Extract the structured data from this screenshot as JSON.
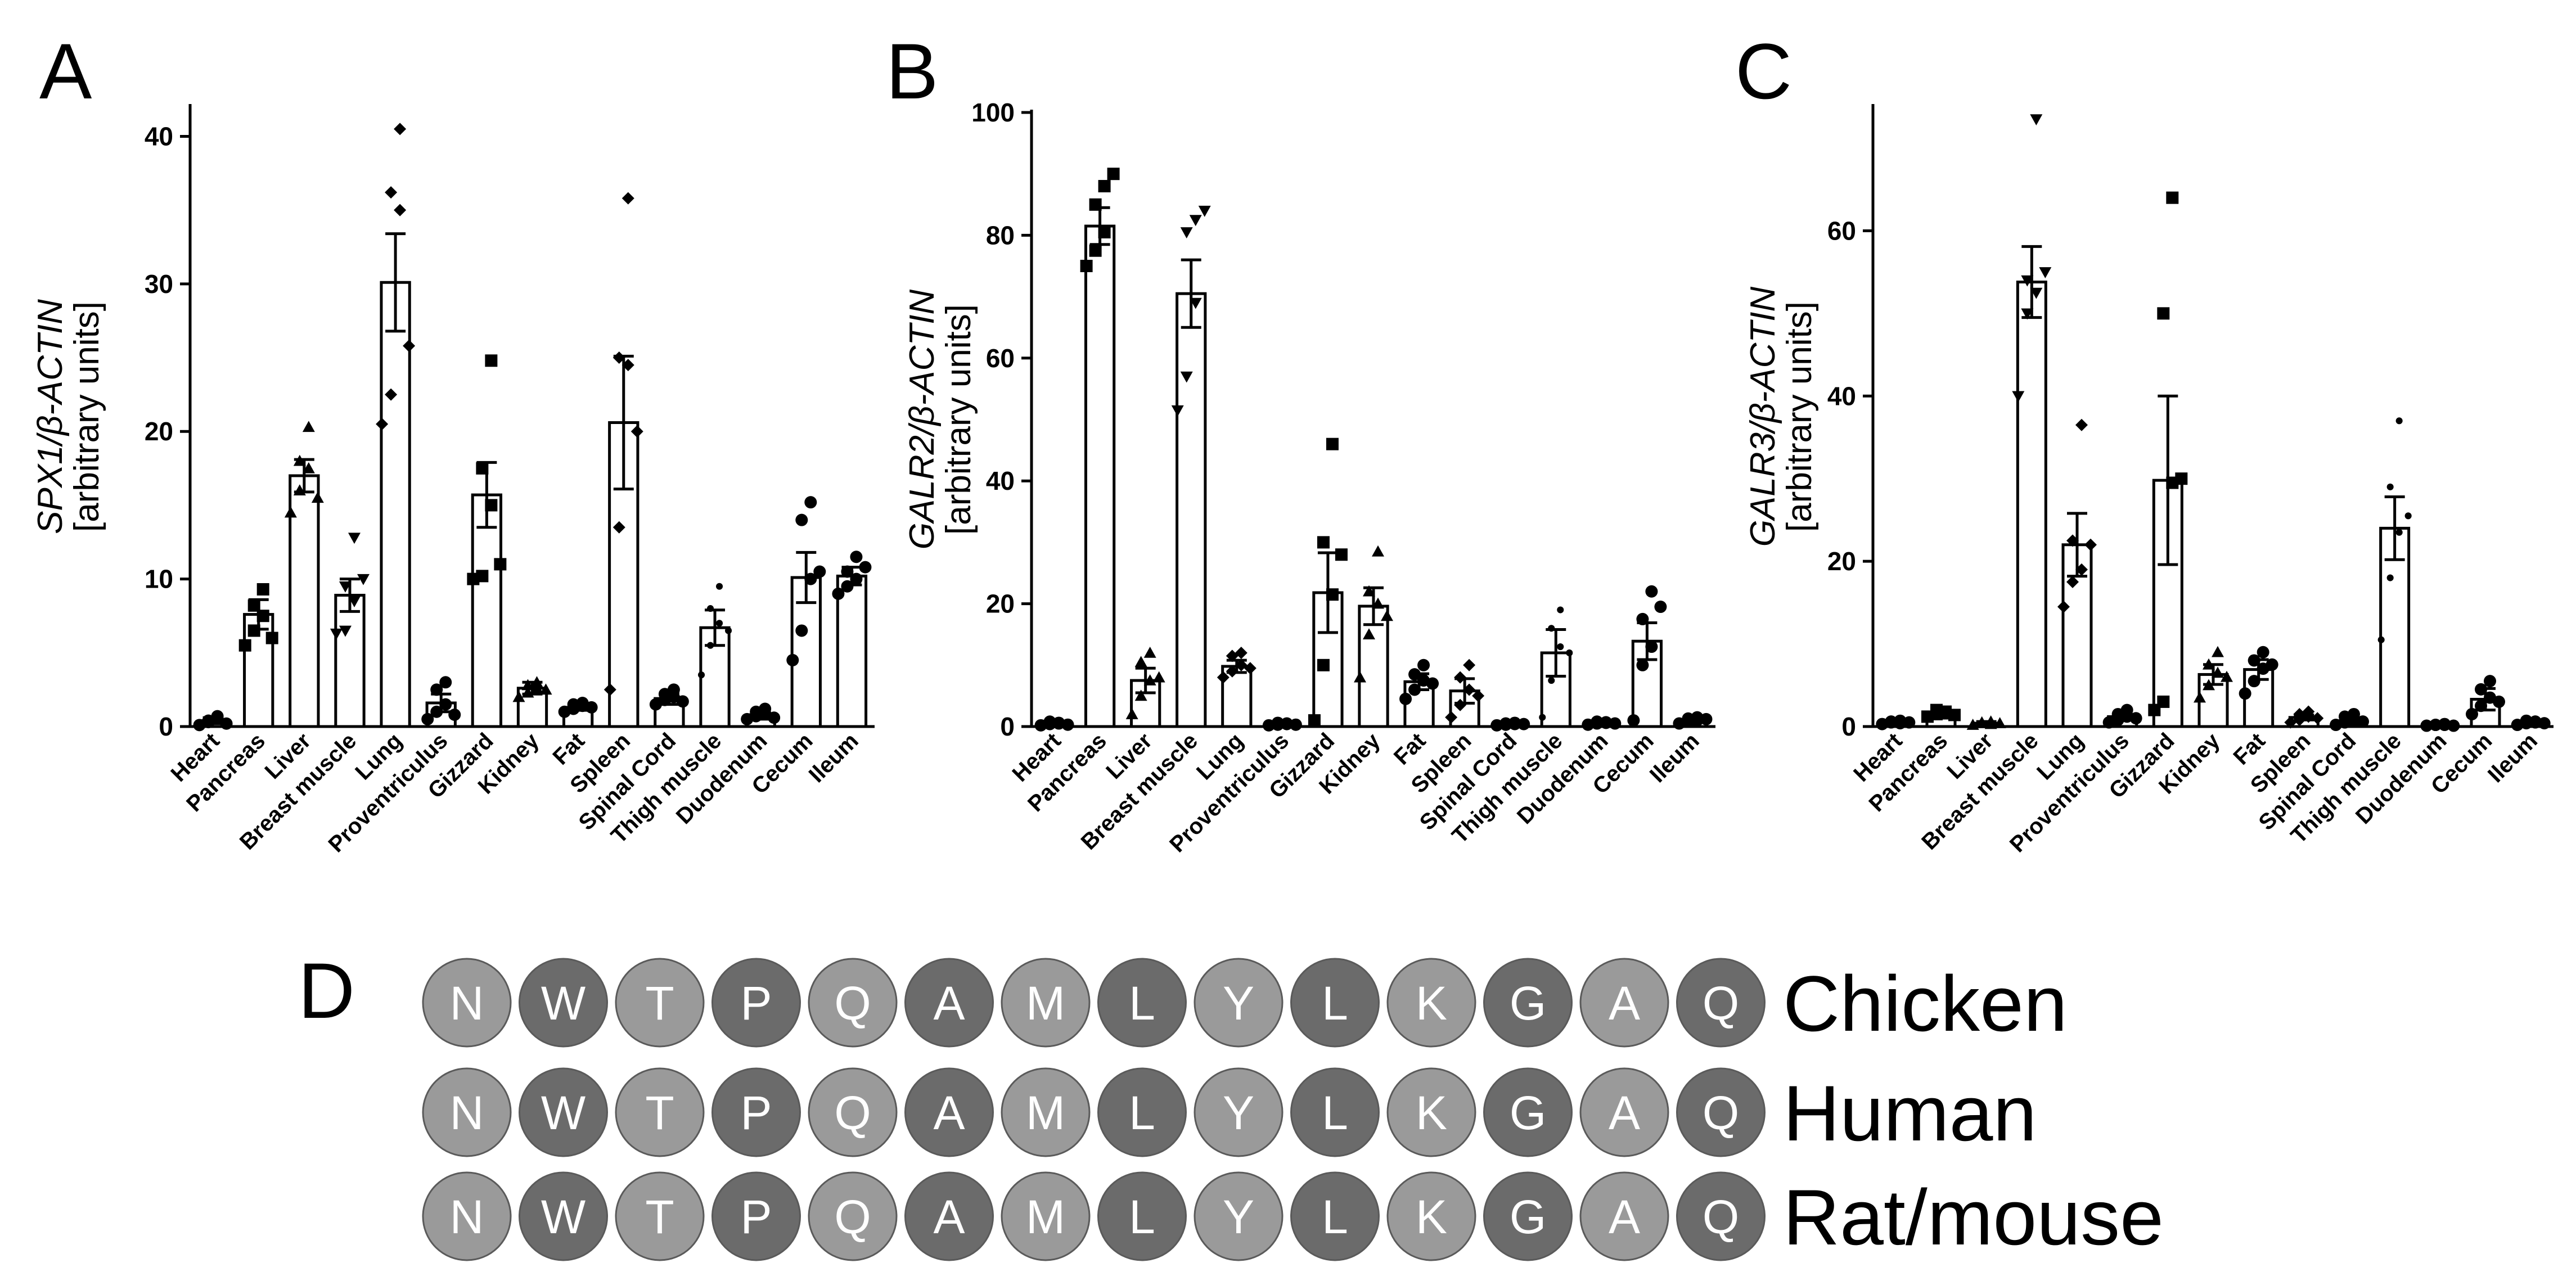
{
  "colors": {
    "bar_fill": "#ffffff",
    "stroke": "#000000",
    "light_circle": "#9a9a9a",
    "dark_circle": "#6b6b6b"
  },
  "chart_data": [
    {
      "panel": "A",
      "type": "bar",
      "ylabel_gene": "SPX1/β-ACTIN",
      "ylabel_units": "[arbitrary units]",
      "ylim": [
        0,
        42
      ],
      "yticks": [
        0,
        10,
        20,
        30,
        40
      ],
      "categories": [
        "Heart",
        "Pancreas",
        "Liver",
        "Breast muscle",
        "Lung",
        "Proventriculus",
        "Gizzard",
        "Kidney",
        "Fat",
        "Spleen",
        "Spinal Cord",
        "Thigh muscle",
        "Duodenum",
        "Cecum",
        "Ileum"
      ],
      "values": [
        0.4,
        7.6,
        17.0,
        8.9,
        30.1,
        1.6,
        15.7,
        2.6,
        1.3,
        20.6,
        1.9,
        6.7,
        0.8,
        10.1,
        10.2
      ],
      "sem": [
        0.2,
        1.0,
        1.1,
        1.1,
        3.3,
        0.6,
        2.2,
        0.4,
        0.2,
        4.5,
        0.4,
        1.2,
        0.3,
        1.7,
        0.6
      ],
      "points": [
        [
          0.1,
          0.4,
          0.6,
          0.3,
          0.7,
          0.2
        ],
        [
          5.5,
          6.5,
          7.5,
          8.2,
          9.3,
          6.0
        ],
        [
          14.5,
          16.0,
          17.5,
          18.0,
          20.3,
          15.5
        ],
        [
          6.3,
          6.5,
          8.5,
          9.5,
          12.8,
          10.0
        ],
        [
          20.5,
          22.5,
          35.0,
          36.2,
          40.5,
          25.8
        ],
        [
          0.5,
          1.0,
          1.5,
          2.5,
          3.0,
          0.8
        ],
        [
          10.0,
          10.2,
          15.0,
          17.5,
          24.8,
          11.0
        ],
        [
          2.0,
          2.3,
          2.6,
          2.8,
          3.0,
          2.5
        ],
        [
          1.0,
          1.2,
          1.4,
          1.5,
          1.6,
          1.3
        ],
        [
          2.5,
          13.5,
          24.5,
          25.0,
          35.8,
          20.0
        ],
        [
          1.5,
          1.8,
          2.0,
          2.2,
          2.5,
          1.7
        ],
        [
          3.5,
          5.5,
          7.0,
          8.0,
          9.5,
          6.5
        ],
        [
          0.5,
          0.7,
          0.9,
          1.0,
          1.2,
          0.6
        ],
        [
          4.5,
          6.5,
          10.0,
          14.0,
          15.2,
          10.5
        ],
        [
          9.0,
          9.5,
          10.0,
          10.5,
          11.5,
          10.8
        ]
      ]
    },
    {
      "panel": "B",
      "type": "bar",
      "ylabel_gene": "GALR2/β-ACTIN",
      "ylabel_units": "[arbitrary units]",
      "ylim": [
        0,
        100
      ],
      "yticks": [
        0,
        20,
        40,
        60,
        80,
        100
      ],
      "categories": [
        "Heart",
        "Pancreas",
        "Liver",
        "Breast muscle",
        "Lung",
        "Proventriculus",
        "Gizzard",
        "Kidney",
        "Fat",
        "Spleen",
        "Spinal Cord",
        "Thigh muscle",
        "Duodenum",
        "Cecum",
        "Ileum"
      ],
      "values": [
        0.5,
        81.5,
        7.5,
        70.5,
        9.8,
        0.4,
        21.8,
        19.6,
        7.3,
        5.8,
        0.4,
        12.0,
        0.6,
        13.9,
        1.1
      ],
      "sem": [
        0.2,
        3.0,
        2.0,
        5.5,
        1.0,
        0.2,
        6.5,
        3.0,
        1.3,
        2.0,
        0.2,
        3.8,
        0.2,
        3.0,
        0.3
      ],
      "points": [
        [
          0.2,
          0.4,
          0.6,
          0.8,
          0.5,
          0.3
        ],
        [
          75.0,
          77.5,
          80.5,
          85.0,
          88.0,
          90.0
        ],
        [
          2.0,
          5.0,
          7.5,
          10.5,
          12.0,
          8.0
        ],
        [
          51.5,
          57.0,
          69.0,
          80.5,
          82.5,
          84.0
        ],
        [
          8.0,
          9.0,
          10.0,
          11.5,
          12.0,
          9.5
        ],
        [
          0.2,
          0.3,
          0.5,
          0.6,
          0.4,
          0.3
        ],
        [
          1.0,
          10.0,
          21.5,
          30.0,
          46.0,
          28.0
        ],
        [
          8.0,
          15.0,
          20.0,
          22.0,
          28.5,
          18.0
        ],
        [
          4.5,
          6.0,
          7.5,
          8.5,
          10.0,
          7.0
        ],
        [
          1.5,
          3.5,
          6.0,
          8.0,
          10.0,
          5.0
        ],
        [
          0.2,
          0.3,
          0.4,
          0.5,
          0.6,
          0.4
        ],
        [
          1.5,
          7.5,
          13.0,
          16.0,
          19.0,
          12.0
        ],
        [
          0.3,
          0.5,
          0.6,
          0.8,
          0.7,
          0.5
        ],
        [
          1.0,
          10.0,
          13.0,
          17.5,
          22.0,
          19.5
        ],
        [
          0.5,
          0.8,
          1.0,
          1.3,
          1.5,
          1.2
        ]
      ]
    },
    {
      "panel": "C",
      "type": "bar",
      "ylabel_gene": "GALR3/β-ACTIN",
      "ylabel_units": "[arbitrary units]",
      "ylim": [
        0,
        75
      ],
      "yticks": [
        0,
        20,
        40,
        60
      ],
      "categories": [
        "Heart",
        "Pancreas",
        "Liver",
        "Breast muscle",
        "Lung",
        "Proventriculus",
        "Gizzard",
        "Kidney",
        "Fat",
        "Spleen",
        "Spinal Cord",
        "Thigh muscle",
        "Duodenum",
        "Cecum",
        "Ileum"
      ],
      "values": [
        0.5,
        1.6,
        0.4,
        53.8,
        22.0,
        1.2,
        29.8,
        6.3,
        6.9,
        1.1,
        0.7,
        24.0,
        0.2,
        3.3,
        0.5
      ],
      "sem": [
        0.2,
        0.3,
        0.2,
        4.3,
        3.8,
        0.3,
        10.2,
        1.2,
        1.2,
        0.3,
        0.4,
        3.8,
        0.1,
        1.3,
        0.2
      ],
      "points": [
        [
          0.3,
          0.5,
          0.7,
          0.6,
          0.4,
          0.5
        ],
        [
          1.2,
          1.5,
          1.8,
          2.0,
          1.6,
          1.4
        ],
        [
          0.2,
          0.4,
          0.6,
          0.5,
          0.3,
          0.4
        ],
        [
          40.0,
          50.0,
          52.5,
          54.0,
          73.5,
          55.0
        ],
        [
          14.5,
          17.5,
          19.0,
          22.5,
          36.5,
          22.0
        ],
        [
          0.5,
          0.8,
          1.2,
          1.5,
          2.0,
          1.0
        ],
        [
          2.0,
          3.0,
          29.5,
          50.0,
          64.0,
          30.0
        ],
        [
          3.5,
          5.0,
          6.5,
          7.5,
          9.0,
          6.0
        ],
        [
          4.0,
          5.5,
          7.0,
          8.0,
          9.0,
          7.5
        ],
        [
          0.5,
          0.8,
          1.2,
          1.5,
          1.8,
          1.0
        ],
        [
          0.2,
          0.5,
          0.8,
          1.2,
          1.5,
          0.6
        ],
        [
          10.5,
          18.0,
          23.5,
          29.0,
          37.0,
          25.5
        ],
        [
          0.1,
          0.2,
          0.3,
          0.2,
          0.2,
          0.1
        ],
        [
          1.5,
          2.5,
          3.5,
          4.5,
          5.5,
          3.0
        ],
        [
          0.2,
          0.4,
          0.6,
          0.7,
          0.5,
          0.4
        ]
      ]
    }
  ],
  "panels": {
    "a": "A",
    "b": "B",
    "c": "C",
    "d": "D"
  },
  "sequence": {
    "residues": [
      "N",
      "W",
      "T",
      "P",
      "Q",
      "A",
      "M",
      "L",
      "Y",
      "L",
      "K",
      "G",
      "A",
      "Q"
    ],
    "shade": [
      "light",
      "dark",
      "light",
      "dark",
      "light",
      "dark",
      "light",
      "dark",
      "light",
      "dark",
      "light",
      "dark",
      "light",
      "dark"
    ],
    "species": [
      "Chicken",
      "Human",
      "Rat/mouse"
    ]
  }
}
